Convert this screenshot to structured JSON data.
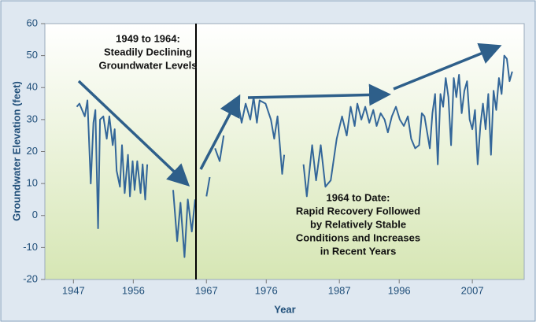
{
  "chart_data": {
    "type": "line",
    "xlabel": "Year",
    "ylabel": "Groundwater Elevation (feet)",
    "xlim": [
      1942.7,
      2014.8
    ],
    "ylim": [
      -20,
      60
    ],
    "xticks": [
      1947,
      1956,
      1967,
      1976,
      1987,
      1996,
      2007
    ],
    "yticks": [
      -20,
      -10,
      0,
      10,
      20,
      30,
      40,
      50,
      60
    ],
    "annotations": [
      [
        "1949 to 1964:",
        "Steadily Declining",
        "Groundwater Levels"
      ],
      [
        "1964 to Date:",
        "Rapid Recovery Followed",
        "by Relatively Stable",
        "Conditions and Increases",
        "in Recent Years"
      ]
    ],
    "series": [
      {
        "color": "#336699",
        "x": [
          1947.5,
          1947.9,
          1948.7,
          1949.1,
          1949.6,
          1950.0,
          1950.3,
          1950.7,
          1951.0,
          1951.5,
          1952.0,
          1952.4,
          1952.9,
          1953.2,
          1953.5,
          1954.0,
          1954.3,
          1954.7,
          1955.2,
          1955.5,
          1955.9,
          1956.2,
          1956.6,
          1957.1,
          1957.4,
          1957.8,
          1958.1,
          1960.0,
          1962.0,
          1962.6,
          1963.1,
          1963.7,
          1964.2,
          1964.8,
          1965.3,
          1966.0,
          1967.0,
          1967.5,
          1968.0,
          1968.3,
          1969.0,
          1969.6,
          1970.5,
          1971.7,
          1972.3,
          1972.9,
          1973.6,
          1974.1,
          1974.6,
          1975.0,
          1975.9,
          1976.7,
          1977.2,
          1977.7,
          1978.4,
          1978.7,
          1980.0,
          1981.6,
          1982.1,
          1982.9,
          1983.5,
          1984.2,
          1984.9,
          1985.7,
          1986.6,
          1987.4,
          1988.1,
          1988.7,
          1989.3,
          1989.7,
          1990.3,
          1990.9,
          1991.5,
          1992.1,
          1992.6,
          1993.2,
          1993.8,
          1994.3,
          1994.9,
          1995.5,
          1996.1,
          1996.7,
          1997.3,
          1997.8,
          1998.4,
          1999.0,
          1999.4,
          1999.8,
          2000.2,
          2000.6,
          2001.0,
          2001.4,
          2001.8,
          2002.2,
          2002.6,
          2003.0,
          2003.4,
          2003.8,
          2004.2,
          2004.6,
          2005.0,
          2005.4,
          2005.8,
          2006.2,
          2006.6,
          2007.0,
          2007.4,
          2007.8,
          2008.2,
          2008.6,
          2009.0,
          2009.4,
          2009.8,
          2010.2,
          2010.6,
          2011.0,
          2011.4,
          2011.8,
          2012.2,
          2012.6,
          2013.0
        ],
        "values": [
          34,
          35,
          31,
          36,
          10,
          29,
          33,
          -4,
          30,
          31,
          24,
          31,
          22,
          27,
          14,
          9,
          22,
          7,
          19,
          6,
          17,
          8,
          17,
          7,
          16,
          5,
          16,
          null,
          8,
          -8,
          4,
          -13,
          5,
          -5,
          5,
          null,
          6,
          12,
          null,
          21,
          17,
          25,
          null,
          36,
          29,
          35,
          30,
          37,
          29,
          36,
          35,
          30,
          24,
          31,
          13,
          19,
          null,
          16,
          6,
          22,
          11,
          22,
          9,
          11,
          24,
          31,
          25,
          34,
          28,
          35,
          30,
          34,
          29,
          33,
          28,
          32,
          30,
          26,
          31,
          34,
          30,
          28,
          31,
          24,
          21,
          22,
          32,
          31,
          26,
          21,
          32,
          38,
          16,
          38,
          34,
          43,
          37,
          22,
          43,
          37,
          44,
          32,
          39,
          42,
          30,
          27,
          33,
          16,
          28,
          35,
          27,
          38,
          19,
          39,
          33,
          43,
          38,
          50,
          49,
          42,
          45
        ]
      }
    ]
  }
}
